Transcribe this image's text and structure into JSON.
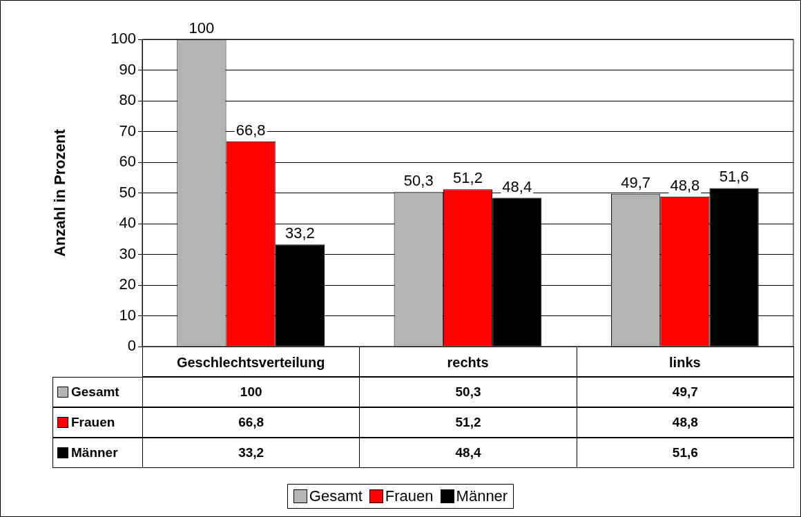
{
  "chart_data": {
    "type": "bar",
    "ylabel": "Anzahl in Prozent",
    "categories": [
      "Geschlechtsverteilung",
      "rechts",
      "links"
    ],
    "series": [
      {
        "name": "Gesamt",
        "color": "#b4b4b4",
        "values": [
          100,
          50.3,
          49.7
        ],
        "value_labels": [
          "100",
          "50,3",
          "49,7"
        ]
      },
      {
        "name": "Frauen",
        "color": "#ff0000",
        "values": [
          66.8,
          51.2,
          48.8
        ],
        "value_labels": [
          "66,8",
          "51,2",
          "48,8"
        ]
      },
      {
        "name": "Männer",
        "color": "#000000",
        "values": [
          33.2,
          48.4,
          51.6
        ],
        "value_labels": [
          "33,2",
          "48,4",
          "51,6"
        ]
      }
    ],
    "ylim": [
      0,
      100
    ],
    "yticks": [
      0,
      10,
      20,
      30,
      40,
      50,
      60,
      70,
      80,
      90,
      100
    ],
    "grid": "y",
    "legend": "bottom"
  }
}
